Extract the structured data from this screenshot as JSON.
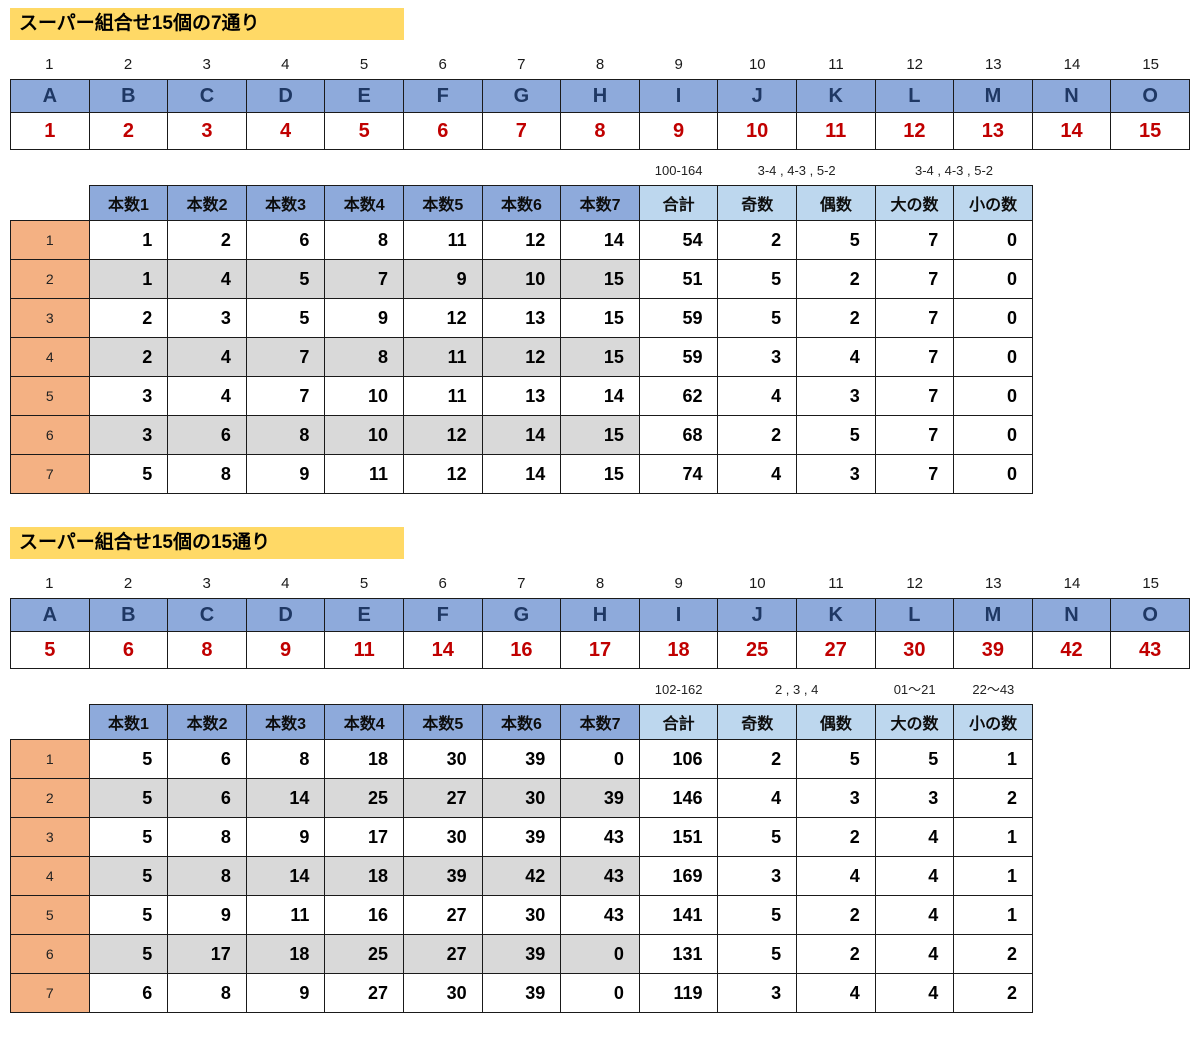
{
  "sections": [
    {
      "title": "スーパー組合せ15個の7通り",
      "col_numbers": [
        "1",
        "2",
        "3",
        "4",
        "5",
        "6",
        "7",
        "8",
        "9",
        "10",
        "11",
        "12",
        "13",
        "14",
        "15"
      ],
      "letters": [
        "A",
        "B",
        "C",
        "D",
        "E",
        "F",
        "G",
        "H",
        "I",
        "J",
        "K",
        "L",
        "M",
        "N",
        "O"
      ],
      "red_numbers": [
        "1",
        "2",
        "3",
        "4",
        "5",
        "6",
        "7",
        "8",
        "9",
        "10",
        "11",
        "12",
        "13",
        "14",
        "15"
      ],
      "notes": [
        {
          "text": "100-164",
          "col": 9,
          "span": 1
        },
        {
          "text": "3-4 , 4-3 , 5-2",
          "col": 10,
          "span": 2
        },
        {
          "text": "3-4 , 4-3 , 5-2",
          "col": 12,
          "span": 2
        }
      ],
      "table": {
        "headers": [
          "本数1",
          "本数2",
          "本数3",
          "本数4",
          "本数5",
          "本数6",
          "本数7",
          "合計",
          "奇数",
          "偶数",
          "大の数",
          "小の数"
        ],
        "rows": [
          {
            "label": "1",
            "values": [
              1,
              2,
              6,
              8,
              11,
              12,
              14,
              54,
              2,
              5,
              7,
              0
            ]
          },
          {
            "label": "2",
            "values": [
              1,
              4,
              5,
              7,
              9,
              10,
              15,
              51,
              5,
              2,
              7,
              0
            ]
          },
          {
            "label": "3",
            "values": [
              2,
              3,
              5,
              9,
              12,
              13,
              15,
              59,
              5,
              2,
              7,
              0
            ]
          },
          {
            "label": "4",
            "values": [
              2,
              4,
              7,
              8,
              11,
              12,
              15,
              59,
              3,
              4,
              7,
              0
            ]
          },
          {
            "label": "5",
            "values": [
              3,
              4,
              7,
              10,
              11,
              13,
              14,
              62,
              4,
              3,
              7,
              0
            ]
          },
          {
            "label": "6",
            "values": [
              3,
              6,
              8,
              10,
              12,
              14,
              15,
              68,
              2,
              5,
              7,
              0
            ]
          },
          {
            "label": "7",
            "values": [
              5,
              8,
              9,
              11,
              12,
              14,
              15,
              74,
              4,
              3,
              7,
              0
            ]
          }
        ]
      }
    },
    {
      "title": "スーパー組合せ15個の15通り",
      "col_numbers": [
        "1",
        "2",
        "3",
        "4",
        "5",
        "6",
        "7",
        "8",
        "9",
        "10",
        "11",
        "12",
        "13",
        "14",
        "15"
      ],
      "letters": [
        "A",
        "B",
        "C",
        "D",
        "E",
        "F",
        "G",
        "H",
        "I",
        "J",
        "K",
        "L",
        "M",
        "N",
        "O"
      ],
      "red_numbers": [
        "5",
        "6",
        "8",
        "9",
        "11",
        "14",
        "16",
        "17",
        "18",
        "25",
        "27",
        "30",
        "39",
        "42",
        "43"
      ],
      "notes": [
        {
          "text": "102-162",
          "col": 9,
          "span": 1
        },
        {
          "text": "2 , 3 , 4",
          "col": 10,
          "span": 2
        },
        {
          "text": "01～21",
          "col": 12,
          "span": 1
        },
        {
          "text": "22～43",
          "col": 13,
          "span": 1
        }
      ],
      "table": {
        "headers": [
          "本数1",
          "本数2",
          "本数3",
          "本数4",
          "本数5",
          "本数6",
          "本数7",
          "合計",
          "奇数",
          "偶数",
          "大の数",
          "小の数"
        ],
        "rows": [
          {
            "label": "1",
            "values": [
              5,
              6,
              8,
              18,
              30,
              39,
              0,
              106,
              2,
              5,
              5,
              1
            ]
          },
          {
            "label": "2",
            "values": [
              5,
              6,
              14,
              25,
              27,
              30,
              39,
              146,
              4,
              3,
              3,
              2
            ]
          },
          {
            "label": "3",
            "values": [
              5,
              8,
              9,
              17,
              30,
              39,
              43,
              151,
              5,
              2,
              4,
              1
            ]
          },
          {
            "label": "4",
            "values": [
              5,
              8,
              14,
              18,
              39,
              42,
              43,
              169,
              3,
              4,
              4,
              1
            ]
          },
          {
            "label": "5",
            "values": [
              5,
              9,
              11,
              16,
              27,
              30,
              43,
              141,
              5,
              2,
              4,
              1
            ]
          },
          {
            "label": "6",
            "values": [
              5,
              17,
              18,
              25,
              27,
              39,
              0,
              131,
              5,
              2,
              4,
              2
            ]
          },
          {
            "label": "7",
            "values": [
              6,
              8,
              9,
              27,
              30,
              39,
              0,
              119,
              3,
              4,
              4,
              2
            ]
          }
        ]
      }
    }
  ]
}
